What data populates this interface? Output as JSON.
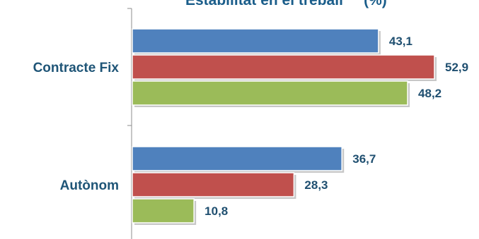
{
  "chart_data": {
    "type": "bar",
    "orientation": "horizontal",
    "title": "Estabilitat en el treball     (%)",
    "categories": [
      "Contracte Fix",
      "Autònom"
    ],
    "series": [
      {
        "values": [
          43.1,
          36.7
        ],
        "color": "#4f81bd"
      },
      {
        "values": [
          52.9,
          28.3
        ],
        "color": "#c0504d"
      },
      {
        "values": [
          48.2,
          10.8
        ],
        "color": "#9bbb59"
      }
    ],
    "value_labels": [
      [
        "43,1",
        "36,7"
      ],
      [
        "52,9",
        "28,3"
      ],
      [
        "48,2",
        "10,8"
      ]
    ],
    "xlim": [
      0,
      55
    ],
    "grid": false,
    "legend": "none"
  }
}
